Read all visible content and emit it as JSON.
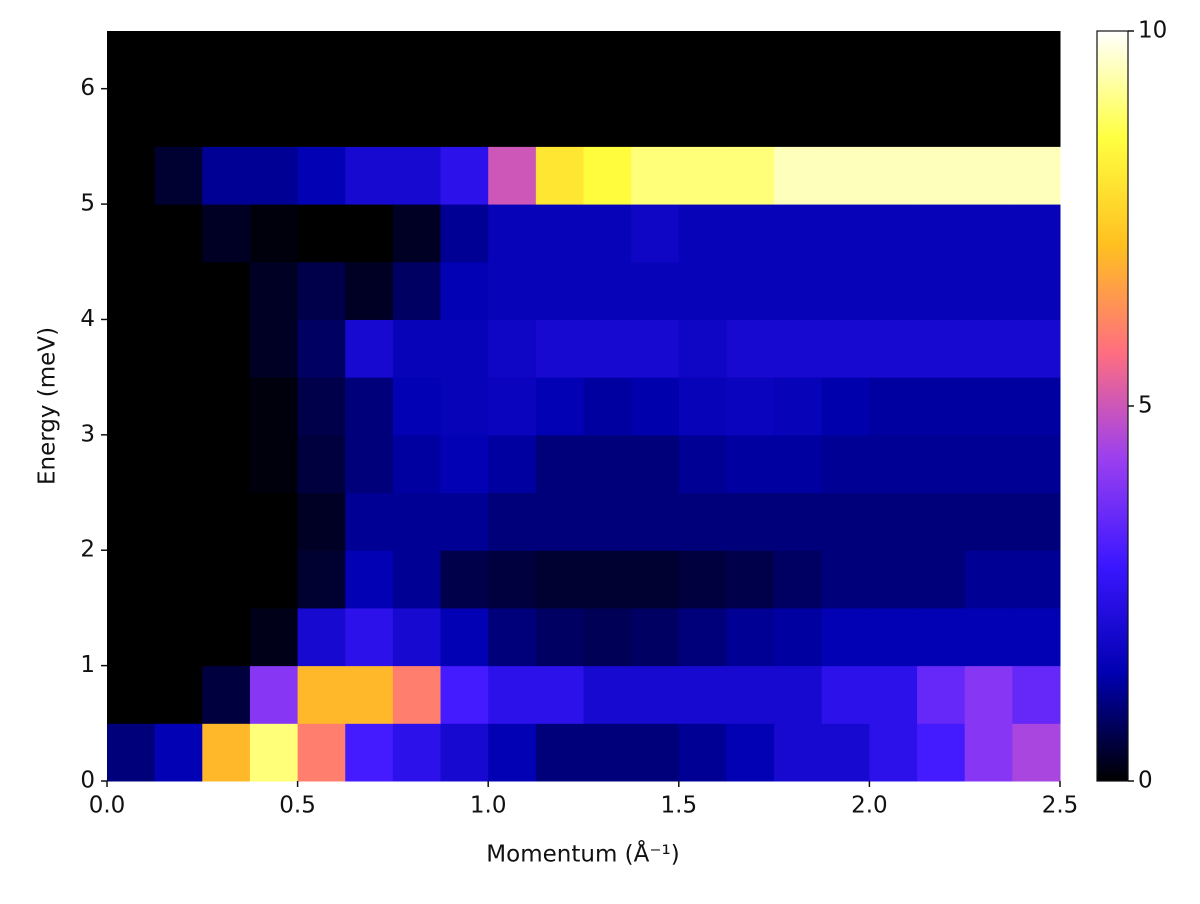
{
  "chart_data": {
    "type": "heatmap",
    "xlabel": "Momentum (Å⁻¹)",
    "ylabel": "Energy (meV)",
    "xlim": [
      0,
      2.5
    ],
    "ylim": [
      0,
      6.5
    ],
    "xticks": [
      {
        "value": 0,
        "label": "0.0"
      },
      0.5,
      {
        "value": 1,
        "label": "1.0"
      },
      1.5,
      {
        "value": 2,
        "label": "2.0"
      },
      2.5
    ],
    "yticks": [
      0,
      1,
      2,
      3,
      4,
      5,
      6
    ],
    "xbins": [
      0,
      0.125,
      0.25,
      0.375,
      0.5,
      0.625,
      0.75,
      0.875,
      1,
      1.125,
      1.25,
      1.375,
      1.5,
      1.625,
      1.75,
      1.875,
      2,
      2.125,
      2.25,
      2.375,
      2.5
    ],
    "ybins": [
      0,
      0.5,
      1,
      1.5,
      2,
      2.5,
      3,
      3.5,
      4,
      4.5,
      5,
      5.5,
      6,
      6.5
    ],
    "values": [
      [
        1,
        1.5,
        7,
        9,
        6,
        3,
        2.5,
        2,
        1.5,
        1,
        1,
        1,
        1.2,
        1.5,
        2,
        2,
        2.5,
        3,
        4,
        4.5
      ],
      [
        0,
        0,
        0.5,
        4,
        7,
        7,
        6,
        3,
        2.5,
        2.5,
        2,
        2,
        2,
        2,
        2,
        2.5,
        2.5,
        3.5,
        4,
        3.5
      ],
      [
        0,
        0,
        0,
        0.2,
        2,
        2.5,
        2,
        1.5,
        1,
        0.8,
        0.7,
        0.8,
        1,
        1.2,
        1.3,
        1.5,
        1.5,
        1.5,
        1.5,
        1.5
      ],
      [
        0,
        0,
        0,
        0,
        0.4,
        1.5,
        1.2,
        0.6,
        0.5,
        0.4,
        0.4,
        0.4,
        0.5,
        0.6,
        0.8,
        1,
        1,
        1,
        1.2,
        1.2
      ],
      [
        0,
        0,
        0,
        0,
        0.3,
        1.2,
        1.2,
        1.2,
        1,
        1,
        1,
        1,
        1,
        1,
        1,
        1,
        1,
        1,
        1,
        1
      ],
      [
        0,
        0,
        0,
        0.1,
        0.5,
        1,
        1.3,
        1.5,
        1.3,
        1,
        1,
        1,
        1.2,
        1.3,
        1.3,
        1.2,
        1.2,
        1.2,
        1.2,
        1.2
      ],
      [
        0,
        0,
        0,
        0.1,
        0.6,
        1,
        1.5,
        1.6,
        1.7,
        1.5,
        1.3,
        1.4,
        1.6,
        1.7,
        1.6,
        1.4,
        1.3,
        1.3,
        1.3,
        1.3
      ],
      [
        0,
        0,
        0,
        0.3,
        0.8,
        2,
        1.6,
        1.6,
        1.8,
        2,
        2,
        2,
        1.8,
        2,
        2,
        2,
        2,
        2,
        2,
        2
      ],
      [
        0,
        0,
        0,
        0.3,
        0.6,
        0.3,
        0.8,
        1.5,
        1.6,
        1.6,
        1.6,
        1.6,
        1.6,
        1.6,
        1.6,
        1.6,
        1.6,
        1.6,
        1.6,
        1.6
      ],
      [
        0,
        0,
        0.3,
        0.1,
        0,
        0,
        0.3,
        1.2,
        1.6,
        1.6,
        1.6,
        1.8,
        1.6,
        1.6,
        1.6,
        1.6,
        1.6,
        1.6,
        1.6,
        1.6
      ],
      [
        0,
        0.4,
        1.2,
        1.2,
        1.5,
        2,
        2,
        2.5,
        5,
        8,
        8.5,
        9,
        9,
        9,
        9.5,
        9.5,
        9.5,
        9.5,
        9.5,
        9.5
      ],
      [
        0,
        0,
        0,
        0,
        0,
        0,
        0,
        0,
        0,
        0,
        0,
        0,
        0,
        0,
        0,
        0,
        0,
        0,
        0,
        0
      ],
      [
        0,
        0,
        0,
        0,
        0,
        0,
        0,
        0,
        0,
        0,
        0,
        0,
        0,
        0,
        0,
        0,
        0,
        0,
        0,
        0
      ]
    ],
    "clim": [
      0,
      10
    ],
    "cticks": [
      0,
      5,
      10
    ],
    "colormap": [
      "#000000",
      "#0000b0",
      "#3a16ff",
      "#9a3ff0",
      "#ff6e80",
      "#ffc020",
      "#ffff40",
      "#ffffff"
    ]
  }
}
